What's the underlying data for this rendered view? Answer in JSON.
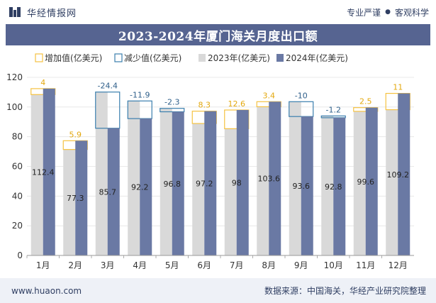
{
  "header": {
    "brand_name": "华经情报网",
    "tagline_left": "专业严谨",
    "tagline_right": "客观科学"
  },
  "footer": {
    "website": "www.huaon.com",
    "source": "数据来源：中国海关，华经产业研究院整理"
  },
  "colors": {
    "title_bg": "#566491",
    "bar_2023": "#d9d9d9",
    "bar_2024": "#6a79a4",
    "increase": "#f5c242",
    "decrease": "#3b7fae",
    "footer_bg": "#eef1f7"
  },
  "chart_data": {
    "type": "bar",
    "title": "2023-2024年厦门海关月度出口额",
    "legend": [
      "增加值(亿美元)",
      "减少值(亿美元)",
      "2023年(亿美元)",
      "2024年(亿美元)"
    ],
    "categories": [
      "1月",
      "2月",
      "3月",
      "4月",
      "5月",
      "6月",
      "7月",
      "8月",
      "9月",
      "10月",
      "11月",
      "12月"
    ],
    "series": [
      {
        "name": "2023年(亿美元)",
        "values": [
          108.4,
          71.4,
          110.1,
          104.1,
          99.1,
          88.9,
          85.4,
          100.2,
          103.6,
          94.0,
          97.1,
          98.2
        ]
      },
      {
        "name": "2024年(亿美元)",
        "values": [
          112.4,
          77.3,
          85.7,
          92.2,
          96.8,
          97.2,
          98,
          103.6,
          93.6,
          92.8,
          99.6,
          109.2
        ]
      }
    ],
    "changes": [
      4,
      5.9,
      -24.4,
      -11.9,
      -2.3,
      8.3,
      12.6,
      3.4,
      -10,
      -1.2,
      2.5,
      11
    ],
    "change_labels": [
      "4",
      "5.9",
      "-24.4",
      "-11.9",
      "-2.3",
      "8.3",
      "12.6",
      "3.4",
      "-10",
      "-1.2",
      "2.5",
      "11"
    ],
    "value_labels": [
      "112.4",
      "77.3",
      "85.7",
      "92.2",
      "96.8",
      "97.2",
      "98",
      "103.6",
      "93.6",
      "92.8",
      "99.6",
      "109.2"
    ],
    "yticks": [
      0,
      20,
      40,
      60,
      80,
      100,
      120
    ],
    "ylim": [
      0,
      120
    ],
    "xlabel": "",
    "ylabel": "",
    "legend_position": "top"
  }
}
